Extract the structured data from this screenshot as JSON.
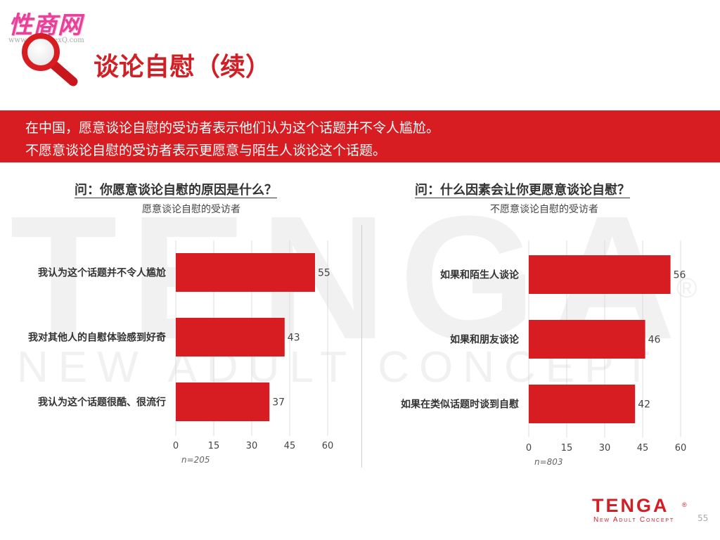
{
  "watermark": {
    "logo_text": "性商网",
    "url_text": "www.ChinaSexQ.com"
  },
  "title": "谈论自慰（续）",
  "banner": {
    "line1": "在中国，愿意谈论自慰的受访者表示他们认为这个话题并不令人尴尬。",
    "line2": "不愿意谈论自慰的受访者表示更愿意与陌生人谈论这个话题。"
  },
  "background": {
    "big_text": "TENGA",
    "sub_text": "NEW ADULT CONCEPT",
    "reg_mark": "®"
  },
  "colors": {
    "accent": "#d71c22",
    "bar": "#d71c22",
    "grid": "#dcdcdc"
  },
  "chart_data": [
    {
      "type": "bar",
      "orientation": "horizontal",
      "title": "问：你愿意谈论自慰的原因是什么？",
      "subtitle": "愿意谈论自慰的受访者",
      "categories": [
        "我认为这个话题并不令人尴尬",
        "我对其他人的自慰体验感到好奇",
        "我认为这个话题很酷、很流行"
      ],
      "values": [
        55,
        43,
        37
      ],
      "xlim": [
        0,
        60
      ],
      "xticks": [
        0,
        15,
        30,
        45,
        60
      ],
      "note": "n=205",
      "grid": true
    },
    {
      "type": "bar",
      "orientation": "horizontal",
      "title": "问：什么因素会让你更愿意谈论自慰？",
      "subtitle": "不愿意谈论自慰的受访者",
      "categories": [
        "如果和陌生人谈论",
        "如果和朋友谈论",
        "如果在类似话题时谈到自慰"
      ],
      "values": [
        56,
        46,
        42
      ],
      "xlim": [
        0,
        60
      ],
      "xticks": [
        0,
        15,
        30,
        45,
        60
      ],
      "note": "n=803",
      "grid": true
    }
  ],
  "footer": {
    "brand": "TENGA",
    "brand_reg": "®",
    "tagline": "New Adult Concept",
    "page_number": "55"
  }
}
